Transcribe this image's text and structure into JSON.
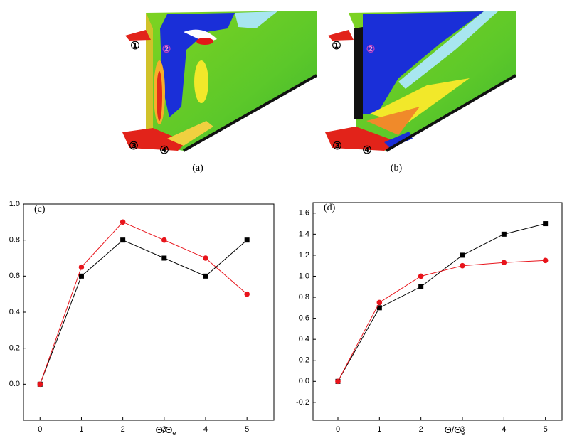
{
  "panels": [
    {
      "label": "(a)",
      "markers": [
        "①",
        "②",
        "③",
        "④"
      ]
    },
    {
      "label": "(b)",
      "markers": [
        "①",
        "②",
        "③",
        "④"
      ]
    }
  ],
  "chart_data": [
    {
      "type": "line",
      "panel_label": "(c)",
      "xlabel": {
        "text": "Θ/Θ",
        "subscript": "e"
      },
      "x": [
        0,
        1,
        2,
        3,
        4,
        5
      ],
      "series": [
        {
          "color": "#000000",
          "marker": "square",
          "values": [
            0,
            0.6,
            0.8,
            0.7,
            0.6,
            0.8
          ]
        },
        {
          "color": "#e8141b",
          "marker": "circle",
          "values": [
            0,
            0.65,
            0.9,
            0.8,
            0.7,
            0.5
          ]
        }
      ],
      "xlim": [
        -0.4,
        5.65
      ],
      "ylim": [
        -0.2,
        1.0
      ],
      "xticks": [
        0,
        1,
        2,
        3,
        4,
        5
      ],
      "yticks": [
        {
          "value": 0,
          "label": "0.0"
        },
        0.2,
        0.4,
        0.6,
        0.8,
        {
          "value": 1,
          "label": "1.0"
        }
      ]
    },
    {
      "type": "line",
      "panel_label": "(d)",
      "xlabel": {
        "text": "Θ/Θ",
        "subscript": "e"
      },
      "x": [
        0,
        1,
        2,
        3,
        4,
        5
      ],
      "series": [
        {
          "color": "#000000",
          "marker": "square",
          "values": [
            0,
            0.7,
            0.9,
            1.2,
            1.4,
            1.5
          ]
        },
        {
          "color": "#e8141b",
          "marker": "circle",
          "values": [
            0,
            0.75,
            1.0,
            1.1,
            1.13,
            1.15
          ]
        }
      ],
      "xlim": [
        -0.6,
        5.4
      ],
      "ylim": [
        -0.37,
        1.7
      ],
      "xticks": [
        0,
        1,
        2,
        3,
        4,
        5
      ],
      "yticks": [
        -0.2,
        {
          "value": 0,
          "label": "0.0"
        },
        0.2,
        0.4,
        0.6,
        0.8,
        {
          "value": 1,
          "label": "1.0"
        },
        1.2,
        1.4,
        1.6
      ]
    }
  ]
}
